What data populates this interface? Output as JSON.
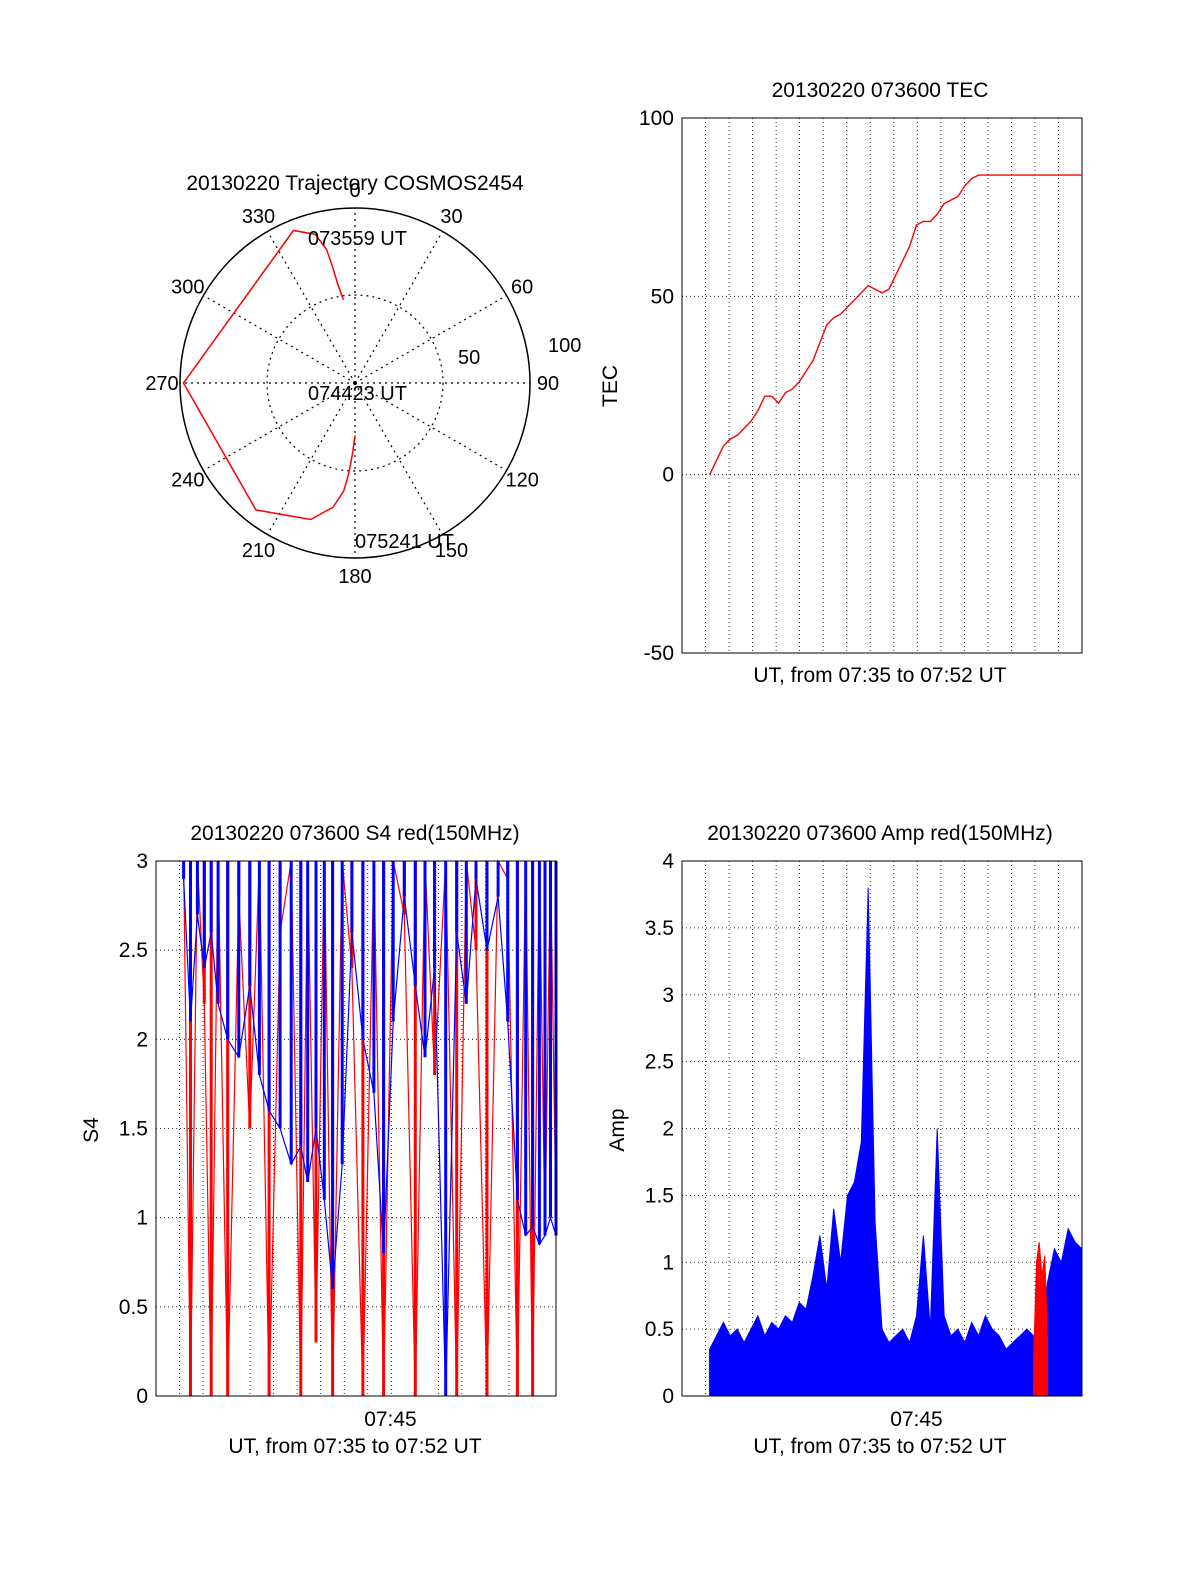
{
  "colors": {
    "primary": "#ff0000",
    "secondary": "#0000ff",
    "grid": "#000000"
  },
  "chart_data": [
    {
      "id": "trajectory",
      "type": "scatter",
      "projection": "polar",
      "title": "20130220 Trajectory COSMOS2454",
      "azimuth_labels": [
        "0",
        "30",
        "60",
        "90",
        "120",
        "150",
        "180",
        "210",
        "240",
        "270",
        "300",
        "330"
      ],
      "radial_labels": [
        "50",
        "100"
      ],
      "radial_ticks": [
        50,
        100
      ],
      "annotations": [
        "073559 UT",
        "074423 UT",
        "075241 UT"
      ],
      "series": [
        {
          "color": "#ff0000",
          "points": [
            [
              352,
              48
            ],
            [
              350,
              58
            ],
            [
              349,
              68
            ],
            [
              348,
              78
            ],
            [
              345,
              88
            ],
            [
              338,
              94
            ],
            [
              270,
              98
            ],
            [
              218,
              92
            ],
            [
              198,
              82
            ],
            [
              190,
              72
            ],
            [
              186,
              62
            ],
            [
              184,
              52
            ],
            [
              182,
              40
            ],
            [
              180,
              30
            ]
          ]
        }
      ],
      "grid": true
    },
    {
      "id": "tec",
      "type": "line",
      "title": "20130220 073600 TEC",
      "xlabel": "UT, from 07:35 to 07:52 UT",
      "ylabel": "TEC",
      "ylim": [
        -50,
        100
      ],
      "yticks": [
        "-50",
        "0",
        "50",
        "100"
      ],
      "xlim": [
        7.58,
        7.87
      ],
      "xtick_labels": [],
      "grid": true,
      "series": [
        {
          "color": "#ff0000",
          "x": [
            7.6,
            7.605,
            7.61,
            7.615,
            7.62,
            7.625,
            7.63,
            7.635,
            7.64,
            7.645,
            7.65,
            7.655,
            7.66,
            7.665,
            7.67,
            7.675,
            7.68,
            7.685,
            7.69,
            7.695,
            7.7,
            7.705,
            7.71,
            7.715,
            7.72,
            7.725,
            7.73,
            7.735,
            7.74,
            7.745,
            7.75,
            7.755,
            7.76,
            7.765,
            7.77,
            7.775,
            7.78,
            7.785,
            7.79,
            7.795,
            7.8,
            7.805,
            7.81,
            7.815,
            7.82,
            7.825,
            7.83,
            7.835,
            7.84,
            7.845,
            7.85,
            7.855,
            7.86,
            7.865,
            7.87
          ],
          "y": [
            0,
            4,
            8,
            10,
            11,
            13,
            15,
            18,
            22,
            22,
            20,
            23,
            24,
            26,
            29,
            32,
            37,
            42,
            44,
            45,
            47,
            49,
            51,
            53,
            52,
            51,
            52,
            56,
            60,
            64,
            70,
            71,
            71,
            73,
            76,
            77,
            78,
            81,
            83,
            84,
            84,
            84,
            84,
            84,
            84,
            84,
            84,
            84,
            84,
            84,
            84,
            84,
            84,
            84,
            84
          ]
        }
      ]
    },
    {
      "id": "s4",
      "type": "line",
      "title": "20130220 073600 S4 red(150MHz)",
      "xlabel": "UT, from 07:35 to 07:52 UT",
      "ylabel": "S4",
      "ylim": [
        0,
        3
      ],
      "yticks": [
        "0",
        "0.5",
        "1",
        "1.5",
        "2",
        "2.5",
        "3"
      ],
      "xlim": [
        7.58,
        7.87
      ],
      "xtick_labels": [
        "07:45"
      ],
      "xtick_values": [
        7.75
      ],
      "grid": true,
      "series": [
        {
          "color": "#ff0000",
          "x": [
            7.6,
            7.605,
            7.61,
            7.615,
            7.62,
            7.625,
            7.632,
            7.64,
            7.648,
            7.655,
            7.662,
            7.67,
            7.678,
            7.685,
            7.69,
            7.696,
            7.702,
            7.708,
            7.715,
            7.722,
            7.73,
            7.738,
            7.745,
            7.752,
            7.76,
            7.768,
            7.775,
            7.782,
            7.79,
            7.798,
            7.805,
            7.812,
            7.82,
            7.828,
            7.835,
            7.842,
            7.848,
            7.853,
            7.858,
            7.862,
            7.866,
            7.87
          ],
          "y": [
            3.0,
            0.0,
            3.0,
            2.2,
            0.0,
            3.0,
            0.0,
            2.8,
            1.5,
            3.0,
            0.0,
            2.6,
            3.0,
            0.0,
            3.0,
            0.3,
            3.0,
            0.0,
            3.0,
            2.4,
            0.0,
            3.0,
            0.0,
            3.0,
            2.7,
            0.0,
            3.0,
            1.8,
            3.0,
            0.0,
            3.0,
            2.5,
            0.0,
            3.0,
            2.9,
            0.0,
            3.0,
            0.0,
            3.0,
            0.9,
            3.0,
            1.0
          ]
        },
        {
          "color": "#0000ff",
          "x": [
            7.6,
            7.605,
            7.61,
            7.615,
            7.62,
            7.625,
            7.632,
            7.64,
            7.648,
            7.655,
            7.662,
            7.67,
            7.678,
            7.685,
            7.69,
            7.696,
            7.702,
            7.708,
            7.715,
            7.722,
            7.73,
            7.738,
            7.745,
            7.752,
            7.76,
            7.768,
            7.775,
            7.782,
            7.79,
            7.798,
            7.805,
            7.812,
            7.82,
            7.828,
            7.835,
            7.842,
            7.848,
            7.853,
            7.858,
            7.862,
            7.866,
            7.87
          ],
          "y": [
            2.9,
            2.1,
            2.7,
            2.4,
            2.6,
            2.2,
            2.0,
            1.9,
            2.3,
            1.8,
            1.6,
            1.5,
            1.3,
            1.4,
            1.2,
            1.5,
            1.1,
            0.6,
            1.3,
            2.6,
            2.0,
            1.7,
            0.8,
            2.1,
            2.8,
            2.3,
            1.9,
            2.4,
            0.0,
            2.6,
            2.2,
            2.9,
            2.5,
            2.8,
            2.1,
            1.1,
            0.9,
            0.95,
            0.85,
            0.9,
            1.0,
            0.9
          ]
        }
      ]
    },
    {
      "id": "amp",
      "type": "line",
      "title": "20130220 073600 Amp red(150MHz)",
      "xlabel": "UT, from 07:35 to 07:52 UT",
      "ylabel": "Amp",
      "ylim": [
        0,
        4
      ],
      "yticks": [
        "0",
        "0.5",
        "1",
        "1.5",
        "2",
        "2.5",
        "3",
        "3.5",
        "4"
      ],
      "xlim": [
        7.58,
        7.87
      ],
      "xtick_labels": [
        "07:45"
      ],
      "xtick_values": [
        7.75
      ],
      "grid": true,
      "series": [
        {
          "color": "#0000ff",
          "x": [
            7.6,
            7.605,
            7.61,
            7.615,
            7.62,
            7.625,
            7.63,
            7.635,
            7.64,
            7.645,
            7.65,
            7.655,
            7.66,
            7.665,
            7.67,
            7.675,
            7.68,
            7.685,
            7.69,
            7.695,
            7.7,
            7.705,
            7.71,
            7.715,
            7.72,
            7.725,
            7.73,
            7.735,
            7.74,
            7.745,
            7.75,
            7.755,
            7.76,
            7.765,
            7.77,
            7.775,
            7.78,
            7.785,
            7.79,
            7.795,
            7.8,
            7.805,
            7.81,
            7.815,
            7.82,
            7.825,
            7.83,
            7.835,
            7.84,
            7.845,
            7.85,
            7.855,
            7.86,
            7.865,
            7.87
          ],
          "y": [
            0.35,
            0.45,
            0.55,
            0.45,
            0.5,
            0.4,
            0.5,
            0.6,
            0.45,
            0.55,
            0.5,
            0.6,
            0.55,
            0.7,
            0.65,
            0.9,
            1.2,
            0.8,
            1.4,
            1.0,
            1.5,
            1.6,
            1.9,
            3.8,
            1.3,
            0.5,
            0.4,
            0.45,
            0.5,
            0.4,
            0.6,
            1.2,
            0.5,
            2.0,
            0.6,
            0.45,
            0.5,
            0.4,
            0.55,
            0.45,
            0.6,
            0.5,
            0.45,
            0.35,
            0.4,
            0.45,
            0.5,
            0.45,
            0.4,
            0.85,
            1.1,
            1.0,
            1.25,
            1.15,
            1.1
          ]
        },
        {
          "color": "#ff0000",
          "x": [
            7.835,
            7.837,
            7.839,
            7.841,
            7.843,
            7.845
          ],
          "y": [
            0.3,
            1.0,
            1.15,
            0.9,
            1.05,
            0.4
          ]
        }
      ]
    }
  ]
}
